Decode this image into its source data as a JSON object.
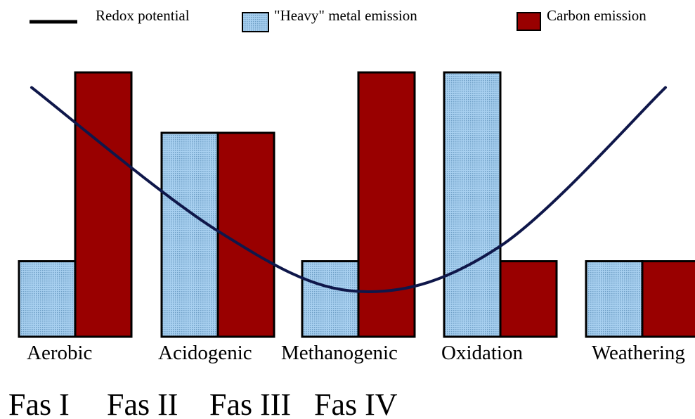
{
  "chart_data": {
    "type": "bar",
    "categories": [
      "Aerobic",
      "Acidogenic",
      "Methanogenic",
      "Oxidation",
      "Weathering"
    ],
    "series": [
      {
        "name": "\"Heavy\" metal emission",
        "values": [
          1,
          2.7,
          1,
          3.5,
          1
        ],
        "color": "#9ec9ec",
        "pattern": "dotted"
      },
      {
        "name": "Carbon emission",
        "values": [
          3.5,
          2.7,
          3.5,
          1,
          1
        ],
        "color": "#990000"
      }
    ],
    "line_series": {
      "name": "Redox potential",
      "color": "#0f174a",
      "values": [
        3.3,
        1.4,
        0.6,
        1.2,
        3.3
      ]
    },
    "ylim": [
      0,
      3.5
    ],
    "legend_position": "top",
    "phases": [
      "Fas I",
      "Fas II",
      "Fas III",
      "Fas IV"
    ]
  }
}
